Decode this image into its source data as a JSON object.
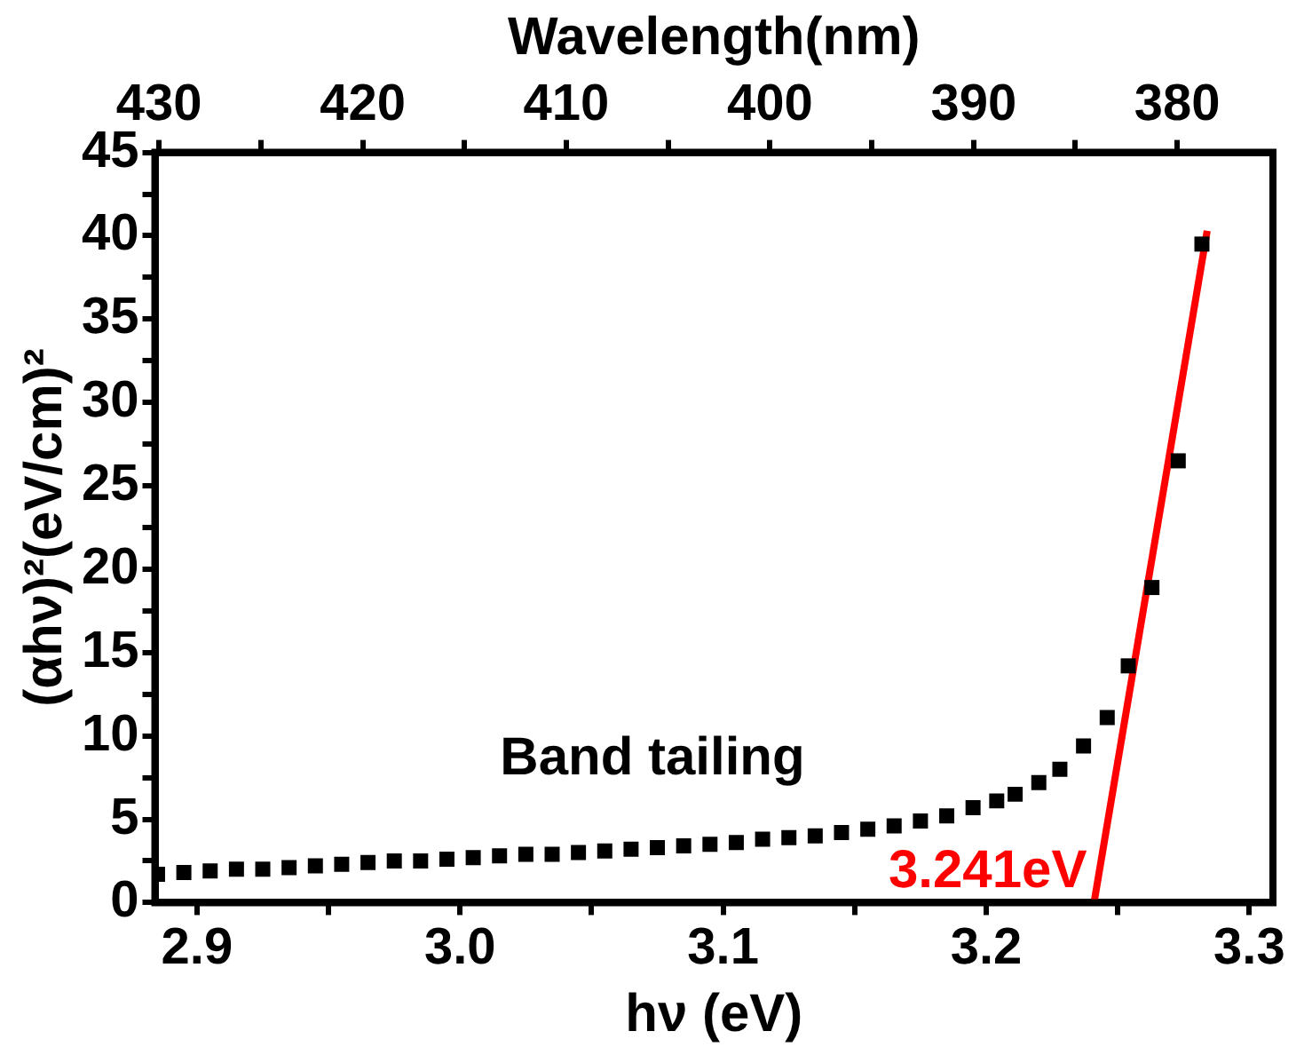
{
  "chart_data": {
    "type": "scatter",
    "xlabel": "hν (eV)",
    "ylabel": "(αhν)²(eV/cm)²",
    "x2label": "Wavelength(nm)",
    "xlim": [
      2.884,
      3.309
    ],
    "xticks": [
      {
        "value": 2.9,
        "label": "2.9"
      },
      {
        "value": 2.95,
        "label": null
      },
      {
        "value": 3.0,
        "label": "3.0"
      },
      {
        "value": 3.05,
        "label": null
      },
      {
        "value": 3.1,
        "label": "3.1"
      },
      {
        "value": 3.15,
        "label": null
      },
      {
        "value": 3.2,
        "label": "3.2"
      },
      {
        "value": 3.25,
        "label": null
      },
      {
        "value": 3.3,
        "label": "3.3"
      }
    ],
    "ylim": [
      0,
      45
    ],
    "yticks": [
      0,
      {
        "value": 2.5,
        "label": null
      },
      5,
      {
        "value": 7.5,
        "label": null
      },
      10,
      {
        "value": 12.5,
        "label": null
      },
      15,
      {
        "value": 17.5,
        "label": null
      },
      20,
      {
        "value": 22.5,
        "label": null
      },
      25,
      {
        "value": 27.5,
        "label": null
      },
      30,
      {
        "value": 32.5,
        "label": null
      },
      35,
      {
        "value": 37.5,
        "label": null
      },
      40,
      {
        "value": 42.5,
        "label": null
      },
      45
    ],
    "x2lim": [
      430.2,
      375.3
    ],
    "x2ticks": [
      430,
      {
        "value": 425,
        "label": null
      },
      420,
      {
        "value": 415,
        "label": null
      },
      410,
      {
        "value": 405,
        "label": null
      },
      400,
      {
        "value": 395,
        "label": null
      },
      390,
      {
        "value": 385,
        "label": null
      },
      380
    ],
    "grid": false,
    "legend": false,
    "annotations": [
      "Band tailing",
      {
        "text": "3.241eV",
        "x": 3.241,
        "y": 0
      }
    ],
    "series": [
      {
        "type": "scatter",
        "color": "#000000",
        "marker": "square",
        "x": [
          2.885,
          2.895,
          2.905,
          2.915,
          2.925,
          2.935,
          2.945,
          2.955,
          2.965,
          2.975,
          2.985,
          2.995,
          3.005,
          3.015,
          3.025,
          3.035,
          3.045,
          3.055,
          3.065,
          3.075,
          3.085,
          3.095,
          3.105,
          3.115,
          3.125,
          3.135,
          3.145,
          3.155,
          3.165,
          3.175,
          3.185,
          3.195,
          3.204,
          3.211,
          3.22,
          3.228,
          3.237,
          3.246,
          3.254,
          3.263,
          3.273,
          3.282
        ],
        "values": [
          1.7,
          1.8,
          1.9,
          2.0,
          2.0,
          2.1,
          2.2,
          2.3,
          2.4,
          2.5,
          2.5,
          2.6,
          2.7,
          2.8,
          2.9,
          2.9,
          3.0,
          3.1,
          3.2,
          3.3,
          3.4,
          3.5,
          3.6,
          3.8,
          3.9,
          4.0,
          4.2,
          4.4,
          4.6,
          4.9,
          5.2,
          5.7,
          6.1,
          6.5,
          7.2,
          8.0,
          9.4,
          11.1,
          14.2,
          18.9,
          26.5,
          39.5
        ]
      },
      {
        "type": "line",
        "color": "#ff0000",
        "marker": "none",
        "x": [
          3.241,
          3.284
        ],
        "values": [
          0,
          40.3
        ]
      }
    ]
  }
}
